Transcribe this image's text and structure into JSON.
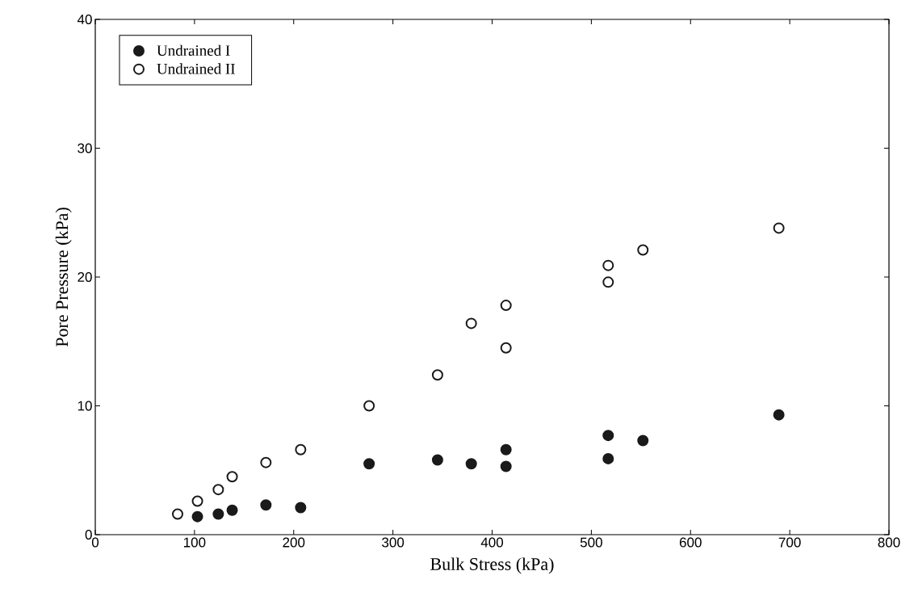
{
  "chart_data": {
    "type": "scatter",
    "xlabel": "Bulk Stress (kPa)",
    "ylabel": "Pore Pressure (kPa)",
    "xlim": [
      0,
      800
    ],
    "ylim": [
      0,
      40
    ],
    "xticks": [
      0,
      100,
      200,
      300,
      400,
      500,
      600,
      700,
      800
    ],
    "yticks": [
      0,
      10,
      20,
      30,
      40
    ],
    "legend": "top left",
    "grid": false,
    "marker": "circle",
    "series": [
      {
        "name": "Undrained I",
        "color": "#1a1a1a",
        "x": [
          103,
          124,
          138,
          172,
          207,
          276,
          345,
          379,
          414,
          414,
          517,
          517,
          552,
          689
        ],
        "values": [
          1.4,
          1.6,
          1.9,
          2.3,
          2.1,
          5.5,
          5.8,
          5.5,
          6.6,
          5.3,
          7.7,
          5.9,
          7.3,
          9.3
        ]
      },
      {
        "name": "Undrained II",
        "color": "#1a1a1a",
        "x": [
          83,
          103,
          124,
          138,
          172,
          207,
          276,
          345,
          379,
          414,
          414,
          517,
          517,
          552,
          689
        ],
        "values": [
          1.6,
          2.6,
          3.5,
          4.5,
          5.6,
          6.6,
          10.0,
          12.4,
          16.4,
          17.8,
          14.5,
          19.6,
          20.9,
          22.1,
          23.8
        ]
      }
    ]
  }
}
